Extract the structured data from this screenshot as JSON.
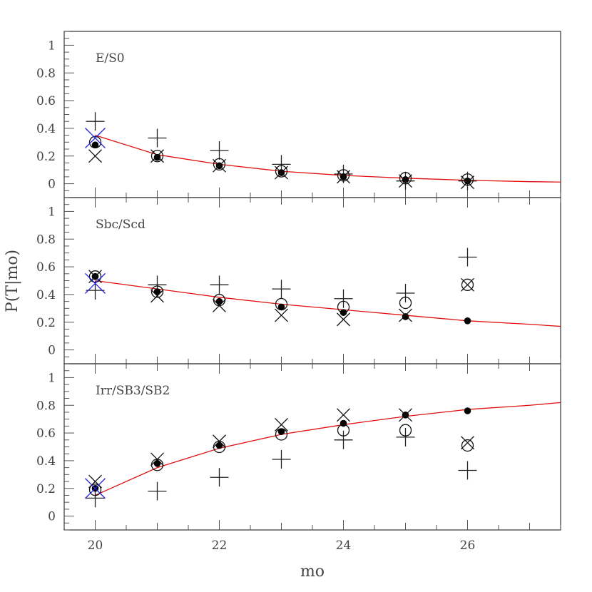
{
  "chart_data": {
    "type": "scatter",
    "xlabel": "mo",
    "ylabel": "P(T|mo)",
    "xlim": [
      19.5,
      27.5
    ],
    "x_ticks": [
      20,
      22,
      24,
      26
    ],
    "y_ticks": [
      0,
      0.2,
      0.4,
      0.6,
      0.8,
      1
    ],
    "ylim": [
      -0.1,
      1.1
    ],
    "grid": false,
    "legend": null,
    "marker_styles": {
      "plus": {
        "color": "#222222",
        "symbol": "+"
      },
      "circle": {
        "color": "#111111",
        "symbol": "open circle"
      },
      "dot": {
        "color": "#000000",
        "symbol": "filled circle"
      },
      "cross": {
        "color": "#111111",
        "symbol": "x"
      },
      "blue_cross": {
        "color": "#2020dd",
        "symbol": "x"
      },
      "fit_line": {
        "color": "#e01010"
      }
    },
    "panels": [
      {
        "title": "E/S0",
        "x": [
          20,
          21,
          22,
          23,
          24,
          25,
          26
        ],
        "series": [
          {
            "name": "plus",
            "values": [
              0.45,
              0.33,
              0.24,
              0.14,
              0.07,
              0.02,
              0.02
            ]
          },
          {
            "name": "circle",
            "values": [
              0.3,
              0.2,
              0.14,
              0.09,
              0.06,
              0.04,
              0.03
            ]
          },
          {
            "name": "dot",
            "values": [
              0.28,
              0.19,
              0.13,
              0.08,
              0.05,
              0.03,
              0.02
            ]
          },
          {
            "name": "cross",
            "values": [
              0.2,
              0.2,
              0.13,
              0.08,
              0.05,
              0.02,
              0.01
            ]
          }
        ],
        "blue_cross": {
          "x": 20,
          "y": 0.33
        },
        "fit_line": {
          "x": [
            20,
            21,
            22,
            23,
            24,
            25,
            26,
            27,
            27.5
          ],
          "y": [
            0.35,
            0.21,
            0.14,
            0.09,
            0.06,
            0.04,
            0.025,
            0.015,
            0.012
          ]
        }
      },
      {
        "title": "Sbc/Scd",
        "x": [
          20,
          21,
          22,
          23,
          24,
          25,
          26
        ],
        "series": [
          {
            "name": "plus",
            "values": [
              0.43,
              0.47,
              0.47,
              0.44,
              0.37,
              0.41,
              0.67
            ]
          },
          {
            "name": "circle",
            "values": [
              0.53,
              0.42,
              0.36,
              0.33,
              0.31,
              0.34,
              0.47
            ]
          },
          {
            "name": "dot",
            "values": [
              0.53,
              0.42,
              0.35,
              0.31,
              0.27,
              0.24,
              0.21
            ]
          },
          {
            "name": "cross",
            "values": [
              0.53,
              0.39,
              0.32,
              0.25,
              0.22,
              0.25,
              0.47
            ]
          }
        ],
        "blue_cross": {
          "x": 20,
          "y": 0.48
        },
        "fit_line": {
          "x": [
            20,
            21,
            22,
            23,
            24,
            25,
            26,
            27,
            27.5
          ],
          "y": [
            0.5,
            0.44,
            0.38,
            0.33,
            0.29,
            0.25,
            0.21,
            0.185,
            0.17
          ]
        }
      },
      {
        "title": "Irr/SB3/SB2",
        "x": [
          20,
          21,
          22,
          23,
          24,
          25,
          26
        ],
        "series": [
          {
            "name": "plus",
            "values": [
              0.13,
              0.18,
              0.28,
              0.41,
              0.55,
              0.57,
              0.33
            ]
          },
          {
            "name": "circle",
            "values": [
              0.19,
              0.37,
              0.5,
              0.59,
              0.62,
              0.62,
              0.51
            ]
          },
          {
            "name": "dot",
            "values": [
              0.2,
              0.38,
              0.51,
              0.61,
              0.67,
              0.73,
              0.76
            ]
          },
          {
            "name": "cross",
            "values": [
              0.25,
              0.41,
              0.54,
              0.66,
              0.73,
              0.73,
              0.53
            ]
          }
        ],
        "blue_cross": {
          "x": 20,
          "y": 0.2
        },
        "fit_line": {
          "x": [
            20,
            21,
            22,
            23,
            24,
            25,
            26,
            27,
            27.5
          ],
          "y": [
            0.15,
            0.35,
            0.49,
            0.59,
            0.66,
            0.72,
            0.77,
            0.8,
            0.82
          ]
        }
      }
    ]
  }
}
